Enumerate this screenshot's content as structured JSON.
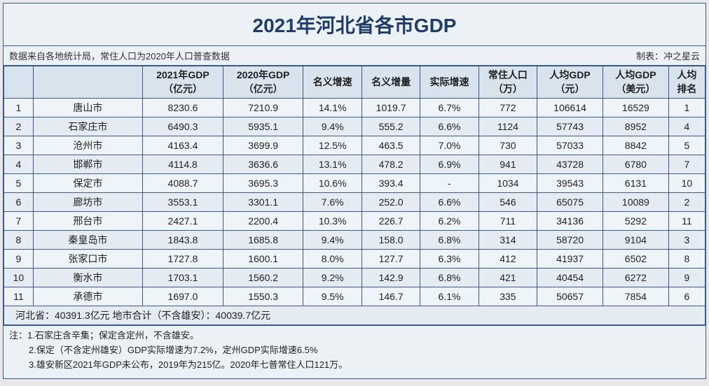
{
  "title": "2021年河北省各市GDP",
  "title_color": "#1f3d6b",
  "title_fontsize": 28,
  "source_text": "数据来自各地统计局，常住人口为2020年人口普查数据",
  "credit_text": "制表：冲之星云",
  "background_color": "#ecf1f6",
  "border_color": "#3a5a8f",
  "row_odd_bg": "#eff4f9",
  "row_even_bg": "#e4ebf3",
  "header_bg": "#d9e3ee",
  "columns": [
    "",
    "",
    "2021年GDP\n（亿元）",
    "2020年GDP\n（亿元）",
    "名义增速",
    "名义增量",
    "实际增速",
    "常住人口\n（万）",
    "人均GDP\n（元）",
    "人均GDP\n（美元）",
    "人均\n排名"
  ],
  "rows": [
    {
      "rank": "1",
      "city": "唐山市",
      "gdp21": "8230.6",
      "gdp20": "7210.9",
      "nomgrow": "14.1%",
      "nomincr": "1019.7",
      "realgrow": "6.7%",
      "pop": "772",
      "pcgdp_cny": "106614",
      "pcgdp_usd": "16529",
      "pcrank": "1"
    },
    {
      "rank": "2",
      "city": "石家庄市",
      "gdp21": "6490.3",
      "gdp20": "5935.1",
      "nomgrow": "9.4%",
      "nomincr": "555.2",
      "realgrow": "6.6%",
      "pop": "1124",
      "pcgdp_cny": "57743",
      "pcgdp_usd": "8952",
      "pcrank": "4"
    },
    {
      "rank": "3",
      "city": "沧州市",
      "gdp21": "4163.4",
      "gdp20": "3699.9",
      "nomgrow": "12.5%",
      "nomincr": "463.5",
      "realgrow": "7.0%",
      "pop": "730",
      "pcgdp_cny": "57033",
      "pcgdp_usd": "8842",
      "pcrank": "5"
    },
    {
      "rank": "4",
      "city": "邯郸市",
      "gdp21": "4114.8",
      "gdp20": "3636.6",
      "nomgrow": "13.1%",
      "nomincr": "478.2",
      "realgrow": "6.9%",
      "pop": "941",
      "pcgdp_cny": "43728",
      "pcgdp_usd": "6780",
      "pcrank": "7"
    },
    {
      "rank": "5",
      "city": "保定市",
      "gdp21": "4088.7",
      "gdp20": "3695.3",
      "nomgrow": "10.6%",
      "nomincr": "393.4",
      "realgrow": "-",
      "pop": "1034",
      "pcgdp_cny": "39543",
      "pcgdp_usd": "6131",
      "pcrank": "10"
    },
    {
      "rank": "6",
      "city": "廊坊市",
      "gdp21": "3553.1",
      "gdp20": "3301.1",
      "nomgrow": "7.6%",
      "nomincr": "252.0",
      "realgrow": "6.6%",
      "pop": "546",
      "pcgdp_cny": "65075",
      "pcgdp_usd": "10089",
      "pcrank": "2"
    },
    {
      "rank": "7",
      "city": "邢台市",
      "gdp21": "2427.1",
      "gdp20": "2200.4",
      "nomgrow": "10.3%",
      "nomincr": "226.7",
      "realgrow": "6.2%",
      "pop": "711",
      "pcgdp_cny": "34136",
      "pcgdp_usd": "5292",
      "pcrank": "11"
    },
    {
      "rank": "8",
      "city": "秦皇岛市",
      "gdp21": "1843.8",
      "gdp20": "1685.8",
      "nomgrow": "9.4%",
      "nomincr": "158.0",
      "realgrow": "6.8%",
      "pop": "314",
      "pcgdp_cny": "58720",
      "pcgdp_usd": "9104",
      "pcrank": "3"
    },
    {
      "rank": "9",
      "city": "张家口市",
      "gdp21": "1727.8",
      "gdp20": "1600.1",
      "nomgrow": "8.0%",
      "nomincr": "127.7",
      "realgrow": "6.3%",
      "pop": "412",
      "pcgdp_cny": "41937",
      "pcgdp_usd": "6502",
      "pcrank": "8"
    },
    {
      "rank": "10",
      "city": "衡水市",
      "gdp21": "1703.1",
      "gdp20": "1560.2",
      "nomgrow": "9.2%",
      "nomincr": "142.9",
      "realgrow": "6.8%",
      "pop": "421",
      "pcgdp_cny": "40454",
      "pcgdp_usd": "6272",
      "pcrank": "9"
    },
    {
      "rank": "11",
      "city": "承德市",
      "gdp21": "1697.0",
      "gdp20": "1550.3",
      "nomgrow": "9.5%",
      "nomincr": "146.7",
      "realgrow": "6.1%",
      "pop": "335",
      "pcgdp_cny": "50657",
      "pcgdp_usd": "7854",
      "pcrank": "6"
    }
  ],
  "summary": "河北省：40391.3亿元    地市合计（不含雄安）：40039.7亿元",
  "notes_label": "注：",
  "notes": [
    "1.石家庄含辛集；保定含定州，不含雄安。",
    "2.保定（不含定州雄安）GDP实际增速为7.2%，定州GDP实际增速6.5%",
    "3.雄安新区2021年GDP未公布，2019年为215亿。2020年七普常住人口121万。"
  ]
}
